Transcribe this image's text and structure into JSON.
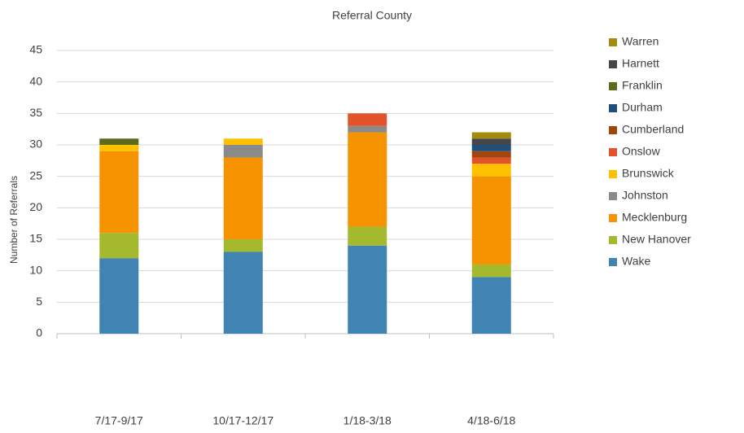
{
  "chart_data": {
    "type": "stacked_bar",
    "title": "Referral County",
    "y_label": "Number of Referrals",
    "categories": [
      "7/17-9/17",
      "10/17-12/17",
      "1/18-3/18",
      "4/18-6/18"
    ],
    "series": [
      {
        "name": "Wake",
        "color": "#3f84b3",
        "values": [
          12,
          13,
          14,
          9
        ]
      },
      {
        "name": "New Hanover",
        "color": "#a5b92e",
        "values": [
          4,
          2,
          3,
          2
        ]
      },
      {
        "name": "Mecklenburg",
        "color": "#f59300",
        "values": [
          13,
          13,
          15,
          14
        ]
      },
      {
        "name": "Johnston",
        "color": "#8a8a8a",
        "values": [
          0,
          2,
          1,
          0
        ]
      },
      {
        "name": "Brunswick",
        "color": "#ffc000",
        "values": [
          1,
          1,
          0,
          2
        ]
      },
      {
        "name": "Onslow",
        "color": "#e2532b",
        "values": [
          0,
          0,
          2,
          1
        ]
      },
      {
        "name": "Cumberland",
        "color": "#9e480e",
        "values": [
          0,
          0,
          0,
          1
        ]
      },
      {
        "name": "Durham",
        "color": "#1f4e79",
        "values": [
          0,
          0,
          0,
          1
        ]
      },
      {
        "name": "Franklin",
        "color": "#5b6b1a",
        "values": [
          1,
          0,
          0,
          0
        ]
      },
      {
        "name": "Harnett",
        "color": "#44464c",
        "values": [
          0,
          0,
          0,
          1
        ]
      },
      {
        "name": "Warren",
        "color": "#a58a10",
        "values": [
          0,
          0,
          0,
          1
        ]
      }
    ],
    "ylim": [
      0,
      45
    ],
    "yticks": [
      0,
      5,
      10,
      15,
      20,
      25,
      30,
      35,
      40,
      45
    ],
    "grid": true
  }
}
